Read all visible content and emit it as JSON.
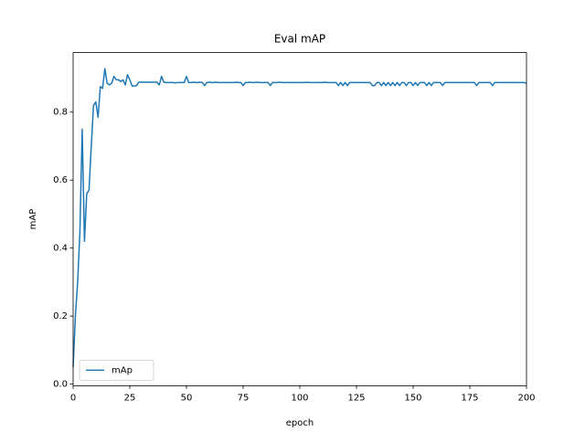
{
  "chart_data": {
    "type": "line",
    "title": "Eval mAP",
    "x_label": "epoch",
    "y_label": "mAP",
    "x": [
      0,
      1,
      2,
      3,
      4,
      5,
      6,
      7,
      8,
      9,
      10,
      11,
      12,
      13,
      14,
      15,
      16,
      17,
      18,
      19,
      20,
      21,
      22,
      23,
      24,
      25,
      26,
      27,
      28,
      29,
      30,
      31,
      32,
      33,
      34,
      35,
      36,
      37,
      38,
      39,
      40,
      41,
      42,
      43,
      44,
      45,
      46,
      47,
      48,
      49,
      50,
      51,
      52,
      53,
      54,
      55,
      56,
      57,
      58,
      59,
      60,
      61,
      62,
      63,
      64,
      65,
      66,
      67,
      68,
      69,
      70,
      71,
      72,
      73,
      74,
      75,
      76,
      77,
      78,
      79,
      80,
      81,
      82,
      83,
      84,
      85,
      86,
      87,
      88,
      89,
      90,
      91,
      92,
      93,
      94,
      95,
      96,
      97,
      98,
      99,
      100,
      101,
      102,
      103,
      104,
      105,
      106,
      107,
      108,
      109,
      110,
      111,
      112,
      113,
      114,
      115,
      116,
      117,
      118,
      119,
      120,
      121,
      122,
      123,
      124,
      125,
      126,
      127,
      128,
      129,
      130,
      131,
      132,
      133,
      134,
      135,
      136,
      137,
      138,
      139,
      140,
      141,
      142,
      143,
      144,
      145,
      146,
      147,
      148,
      149,
      150,
      151,
      152,
      153,
      154,
      155,
      156,
      157,
      158,
      159,
      160,
      161,
      162,
      163,
      164,
      165,
      166,
      167,
      168,
      169,
      170,
      171,
      172,
      173,
      174,
      175,
      176,
      177,
      178,
      179,
      180,
      181,
      182,
      183,
      184,
      185,
      186,
      187,
      188,
      189,
      190,
      191,
      192,
      193,
      194,
      195,
      196,
      197,
      198,
      199,
      200
    ],
    "series": [
      {
        "name": "mAp",
        "color": "#1f77b4",
        "values": [
          0.05,
          0.2,
          0.3,
          0.45,
          0.75,
          0.42,
          0.56,
          0.57,
          0.7,
          0.82,
          0.83,
          0.785,
          0.875,
          0.87,
          0.928,
          0.885,
          0.88,
          0.885,
          0.905,
          0.895,
          0.895,
          0.89,
          0.895,
          0.88,
          0.91,
          0.895,
          0.877,
          0.877,
          0.878,
          0.888,
          0.888,
          0.888,
          0.888,
          0.888,
          0.888,
          0.888,
          0.888,
          0.888,
          0.88,
          0.905,
          0.888,
          0.887,
          0.887,
          0.887,
          0.887,
          0.886,
          0.887,
          0.887,
          0.887,
          0.887,
          0.905,
          0.887,
          0.887,
          0.888,
          0.887,
          0.887,
          0.888,
          0.887,
          0.878,
          0.887,
          0.888,
          0.887,
          0.887,
          0.888,
          0.887,
          0.887,
          0.887,
          0.887,
          0.887,
          0.887,
          0.887,
          0.887,
          0.888,
          0.887,
          0.887,
          0.878,
          0.887,
          0.887,
          0.888,
          0.887,
          0.887,
          0.888,
          0.887,
          0.887,
          0.887,
          0.887,
          0.887,
          0.878,
          0.887,
          0.887,
          0.887,
          0.888,
          0.887,
          0.887,
          0.887,
          0.887,
          0.887,
          0.887,
          0.887,
          0.887,
          0.887,
          0.887,
          0.887,
          0.888,
          0.887,
          0.887,
          0.887,
          0.887,
          0.887,
          0.887,
          0.887,
          0.888,
          0.887,
          0.887,
          0.887,
          0.887,
          0.887,
          0.878,
          0.887,
          0.878,
          0.887,
          0.878,
          0.887,
          0.887,
          0.887,
          0.887,
          0.887,
          0.887,
          0.887,
          0.887,
          0.887,
          0.887,
          0.878,
          0.878,
          0.887,
          0.887,
          0.878,
          0.887,
          0.878,
          0.887,
          0.878,
          0.887,
          0.878,
          0.887,
          0.878,
          0.887,
          0.887,
          0.878,
          0.887,
          0.887,
          0.878,
          0.887,
          0.878,
          0.887,
          0.887,
          0.887,
          0.878,
          0.887,
          0.878,
          0.887,
          0.887,
          0.887,
          0.887,
          0.878,
          0.887,
          0.887,
          0.887,
          0.887,
          0.887,
          0.887,
          0.887,
          0.887,
          0.887,
          0.887,
          0.887,
          0.887,
          0.887,
          0.887,
          0.878,
          0.887,
          0.887,
          0.887,
          0.887,
          0.887,
          0.887,
          0.878,
          0.887,
          0.887,
          0.887,
          0.887,
          0.887,
          0.887,
          0.887,
          0.887,
          0.887,
          0.887,
          0.887,
          0.887,
          0.887,
          0.887,
          0.885
        ]
      }
    ],
    "xlim": [
      0,
      200
    ],
    "xticks": [
      0,
      25,
      50,
      75,
      100,
      125,
      150,
      175,
      200
    ],
    "ylim": [
      -0.005,
      0.975
    ],
    "yticks": [
      {
        "value": 0,
        "label": "0.0"
      },
      0.2,
      0.4,
      0.6,
      0.8
    ],
    "grid": false,
    "legend_position": "lower-left"
  }
}
